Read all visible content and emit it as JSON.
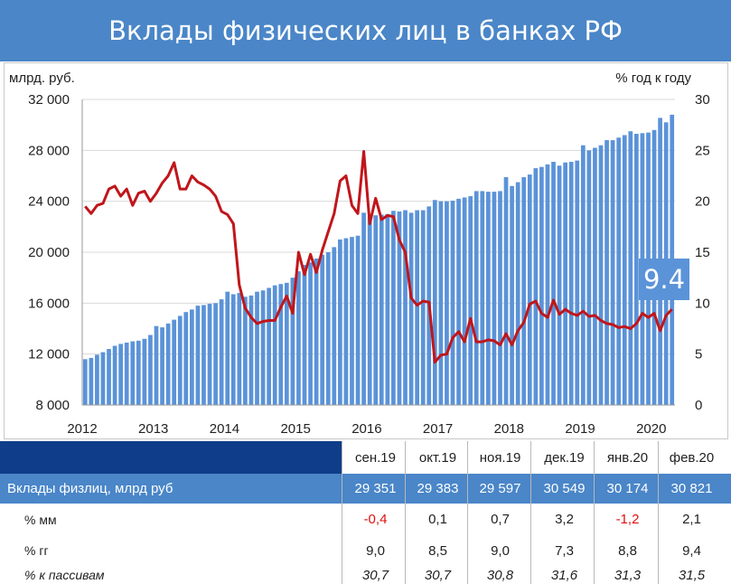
{
  "title": "Вклады физических лиц в банках РФ",
  "colors": {
    "bar": "#5b93d8",
    "line": "#c0161b",
    "header": "#4a86c8",
    "badge": "#5b93d8",
    "negative": "#e01010"
  },
  "chart_data": {
    "type": "bar+line",
    "left_axis_unit": "млрд. руб.",
    "right_axis_unit": "% год к году",
    "left_ticks": [
      "8 000",
      "12 000",
      "16 000",
      "20 000",
      "24 000",
      "28 000",
      "32 000"
    ],
    "left_ylim": [
      8000,
      32000
    ],
    "right_ticks": [
      "0",
      "5",
      "10",
      "15",
      "20",
      "25",
      "30"
    ],
    "right_ylim": [
      0,
      30
    ],
    "x_ticks": [
      "2012",
      "2013",
      "2014",
      "2015",
      "2016",
      "2017",
      "2018",
      "2019",
      "2020"
    ],
    "x_start": "2012-01",
    "x_end": "2020-02",
    "grid": true,
    "badge_value": "9.4",
    "series": [
      {
        "kind": "bar",
        "axis": "left",
        "values": [
          11600,
          11700,
          11950,
          12150,
          12400,
          12650,
          12800,
          12900,
          13000,
          13050,
          13200,
          13500,
          14200,
          14100,
          14400,
          14700,
          15000,
          15300,
          15500,
          15800,
          15850,
          15950,
          16000,
          16300,
          16900,
          16700,
          16800,
          16500,
          16600,
          16900,
          17000,
          17200,
          17400,
          17500,
          17600,
          18000,
          18500,
          19000,
          19200,
          19500,
          19800,
          20000,
          20400,
          21000,
          21100,
          21200,
          21300,
          23100,
          22800,
          22900,
          22950,
          23000,
          23250,
          23200,
          23300,
          23100,
          23300,
          23300,
          23600,
          24100,
          24000,
          24000,
          24050,
          24200,
          24300,
          24400,
          24800,
          24800,
          24750,
          24750,
          24800,
          25900,
          25200,
          25500,
          25900,
          26100,
          26600,
          26700,
          26900,
          27100,
          26800,
          27050,
          27100,
          27200,
          28400,
          28000,
          28200,
          28400,
          28800,
          28800,
          29000,
          29200,
          29500,
          29300,
          29350,
          29400,
          29600,
          30550,
          30200,
          30800
        ]
      },
      {
        "kind": "line",
        "axis": "right",
        "values": [
          19.5,
          18.8,
          19.6,
          19.8,
          21.2,
          21.5,
          20.5,
          21.2,
          19.6,
          20.8,
          21.0,
          20.0,
          20.8,
          21.8,
          22.5,
          23.8,
          21.2,
          21.2,
          22.5,
          21.9,
          21.6,
          21.2,
          20.5,
          19.0,
          18.7,
          17.8,
          11.8,
          9.5,
          8.6,
          8.0,
          8.2,
          8.3,
          8.3,
          9.6,
          10.7,
          9.0,
          15.0,
          12.8,
          14.8,
          13.0,
          15.2,
          17.0,
          18.8,
          22.0,
          22.5,
          19.6,
          18.8,
          24.9,
          17.8,
          20.3,
          18.2,
          18.6,
          18.5,
          16.2,
          15.0,
          10.5,
          9.8,
          10.2,
          10.1,
          4.2,
          4.9,
          5.0,
          6.6,
          7.2,
          6.2,
          8.5,
          6.2,
          6.2,
          6.4,
          6.3,
          5.9,
          7.0,
          5.9,
          7.3,
          8.1,
          9.9,
          10.2,
          9.0,
          8.6,
          10.3,
          8.9,
          9.4,
          9.0,
          8.8,
          9.2,
          8.7,
          8.8,
          8.3,
          8.0,
          7.9,
          7.6,
          7.7,
          7.5,
          8.0,
          9.0,
          8.6,
          9.0,
          7.3,
          8.8,
          9.4
        ]
      }
    ]
  },
  "table": {
    "months": [
      "сен.19",
      "окт.19",
      "ноя.19",
      "дек.19",
      "янв.20",
      "фев.20"
    ],
    "rows": [
      {
        "label": "Вклады физлиц, млрд руб",
        "values": [
          "29 351",
          "29 383",
          "29 597",
          "30 549",
          "30 174",
          "30 821"
        ]
      },
      {
        "label": "% мм",
        "values": [
          "-0,4",
          "0,1",
          "0,7",
          "3,2",
          "-1,2",
          "2,1"
        ]
      },
      {
        "label": "% гг",
        "values": [
          "9,0",
          "8,5",
          "9,0",
          "7,3",
          "8,8",
          "9,4"
        ]
      },
      {
        "label": "% к пассивам",
        "values": [
          "30,7",
          "30,7",
          "30,8",
          "31,6",
          "31,3",
          "31,5"
        ]
      }
    ]
  }
}
